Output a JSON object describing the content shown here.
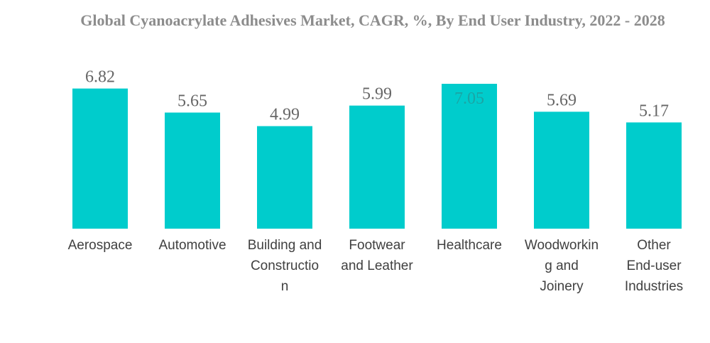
{
  "chart_data": {
    "type": "bar",
    "title": "Global Cyanoacrylate Adhesives Market, CAGR, %, By End User Industry, 2022 - 2028",
    "categories": [
      [
        "Aerospace"
      ],
      [
        "Automotive"
      ],
      [
        "Building and",
        "Constructio",
        "n"
      ],
      [
        "Footwear",
        "and Leather"
      ],
      [
        "Healthcare"
      ],
      [
        "Woodworkin",
        "g and",
        "Joinery"
      ],
      [
        "Other",
        "End-user",
        "Industries"
      ]
    ],
    "values": [
      6.82,
      5.65,
      4.99,
      5.99,
      7.05,
      5.69,
      5.17
    ],
    "value_labels": [
      "6.82",
      "5.65",
      "4.99",
      "5.99",
      "7.05",
      "5.69",
      "5.17"
    ],
    "xlabel": "",
    "ylabel": "",
    "ylim": [
      0,
      7.05
    ],
    "grid": false,
    "bar_color": "#00CCCC",
    "highlight_label_color": "#1aa5a5"
  }
}
